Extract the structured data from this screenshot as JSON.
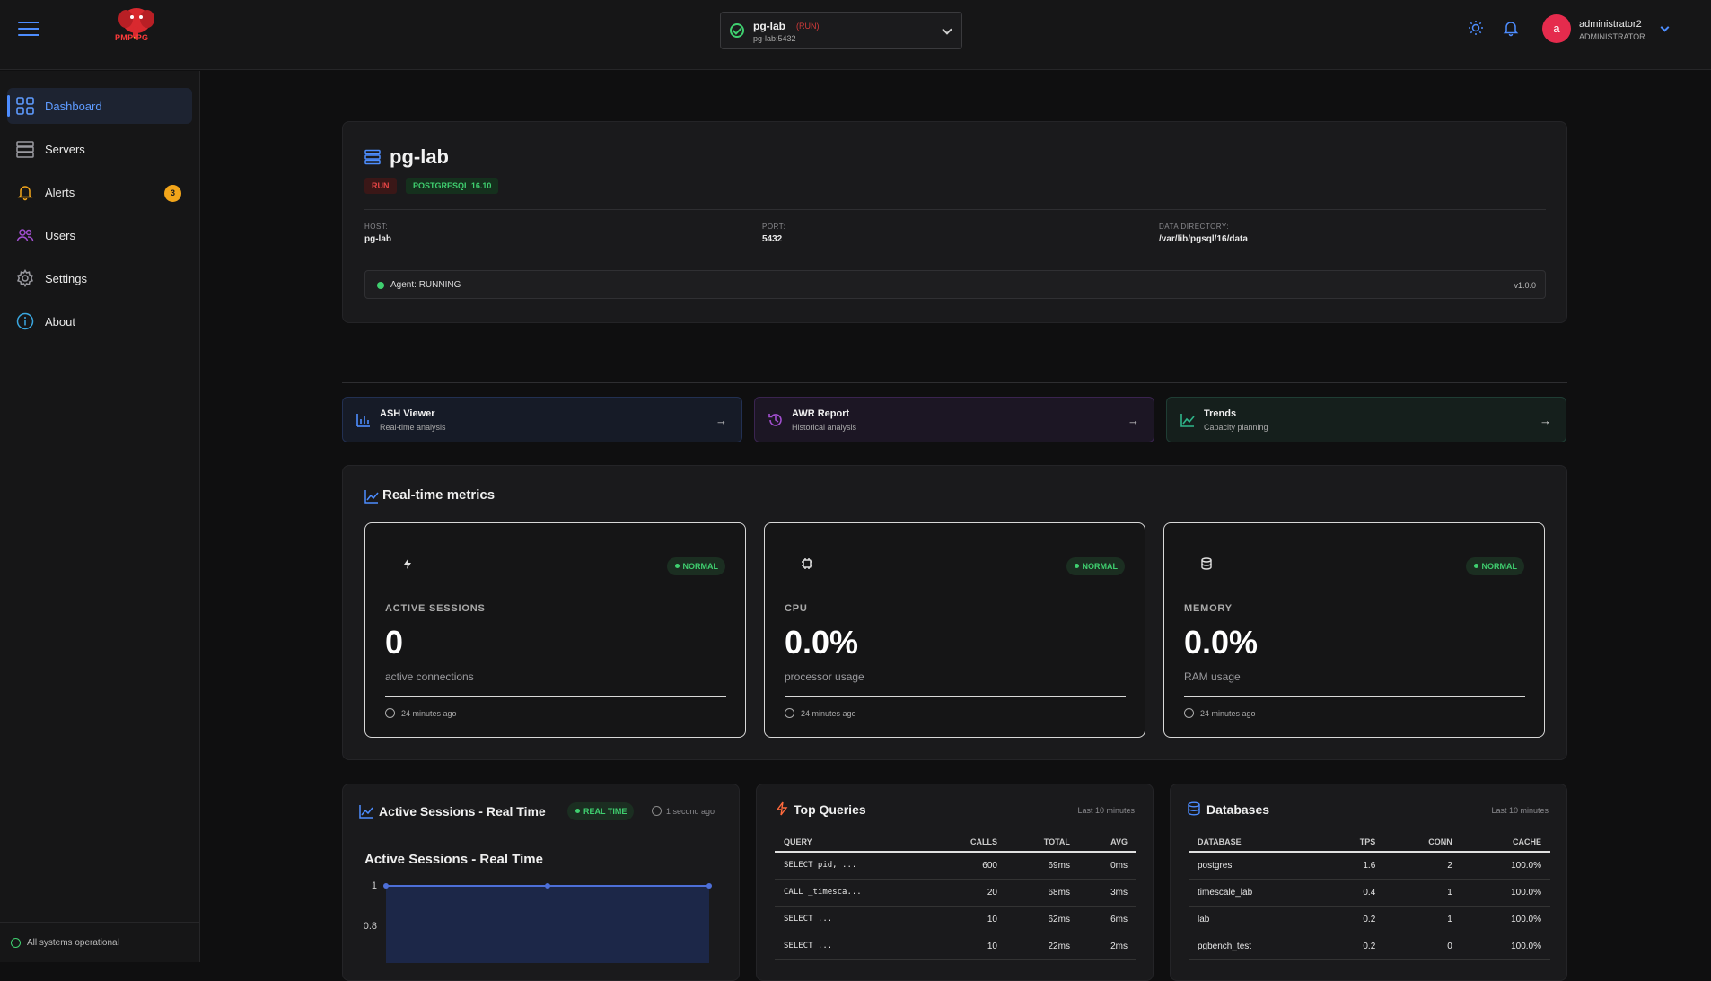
{
  "header": {
    "logo_text_a": "PMP",
    "logo_text_b": "PG",
    "server": {
      "name": "pg-lab",
      "state": "(RUN)",
      "host": "pg-lab:5432"
    },
    "user": {
      "initial": "a",
      "name": "administrator2",
      "role": "ADMINISTRATOR"
    }
  },
  "sidebar": {
    "items": [
      {
        "label": "Dashboard",
        "icon": "grid-icon"
      },
      {
        "label": "Servers",
        "icon": "server-icon"
      },
      {
        "label": "Alerts",
        "icon": "bell-icon",
        "badge": "3"
      },
      {
        "label": "Users",
        "icon": "users-icon"
      },
      {
        "label": "Settings",
        "icon": "gear-icon"
      },
      {
        "label": "About",
        "icon": "info-icon"
      }
    ],
    "status": "All systems operational"
  },
  "server_card": {
    "title": "pg-lab",
    "tag_run": "RUN",
    "tag_version": "POSTGRESQL 16.10",
    "host_label": "HOST:",
    "host_value": "pg-lab",
    "port_label": "PORT:",
    "port_value": "5432",
    "dir_label": "DATA DIRECTORY:",
    "dir_value": "/var/lib/pgsql/16/data",
    "agent": "Agent: RUNNING",
    "version": "v1.0.0"
  },
  "quick_links": [
    {
      "title": "ASH Viewer",
      "subtitle": "Real-time analysis",
      "arrow": "→"
    },
    {
      "title": "AWR Report",
      "subtitle": "Historical analysis",
      "arrow": "→"
    },
    {
      "title": "Trends",
      "subtitle": "Capacity planning",
      "arrow": "→"
    }
  ],
  "metrics": {
    "title": "Real-time metrics",
    "cards": [
      {
        "status": "NORMAL",
        "label": "ACTIVE SESSIONS",
        "value": "0",
        "sub": "active connections",
        "time": "24 minutes ago"
      },
      {
        "status": "NORMAL",
        "label": "CPU",
        "value": "0.0%",
        "sub": "processor usage",
        "time": "24 minutes ago"
      },
      {
        "status": "NORMAL",
        "label": "MEMORY",
        "value": "0.0%",
        "sub": "RAM usage",
        "time": "24 minutes ago"
      }
    ]
  },
  "sessions_panel": {
    "title": "Active Sessions - Real Time",
    "badge": "REAL TIME",
    "updated": "1 second ago",
    "chart_title": "Active Sessions - Real Time"
  },
  "chart_data": {
    "type": "area",
    "title": "Active Sessions - Real Time",
    "x": [
      0,
      1,
      2
    ],
    "series": [
      {
        "values": [
          1,
          1,
          1
        ]
      }
    ],
    "ytick_labels": [
      "1",
      "0.8"
    ],
    "color": "#4d6fd8"
  },
  "top_queries": {
    "title": "Top Queries",
    "period": "Last 10 minutes",
    "headers": [
      "QUERY",
      "CALLS",
      "TOTAL",
      "AVG"
    ],
    "rows": [
      [
        "SELECT pid, ...",
        "600",
        "69ms",
        "0ms"
      ],
      [
        "CALL _timesca...",
        "20",
        "68ms",
        "3ms"
      ],
      [
        "SELECT ...",
        "10",
        "62ms",
        "6ms"
      ],
      [
        "SELECT ...",
        "10",
        "22ms",
        "2ms"
      ]
    ]
  },
  "databases": {
    "title": "Databases",
    "period": "Last 10 minutes",
    "headers": [
      "DATABASE",
      "TPS",
      "CONN",
      "CACHE"
    ],
    "rows": [
      [
        "postgres",
        "1.6",
        "2",
        "100.0%"
      ],
      [
        "timescale_lab",
        "0.4",
        "1",
        "100.0%"
      ],
      [
        "lab",
        "0.2",
        "1",
        "100.0%"
      ],
      [
        "pgbench_test",
        "0.2",
        "0",
        "100.0%"
      ]
    ]
  }
}
